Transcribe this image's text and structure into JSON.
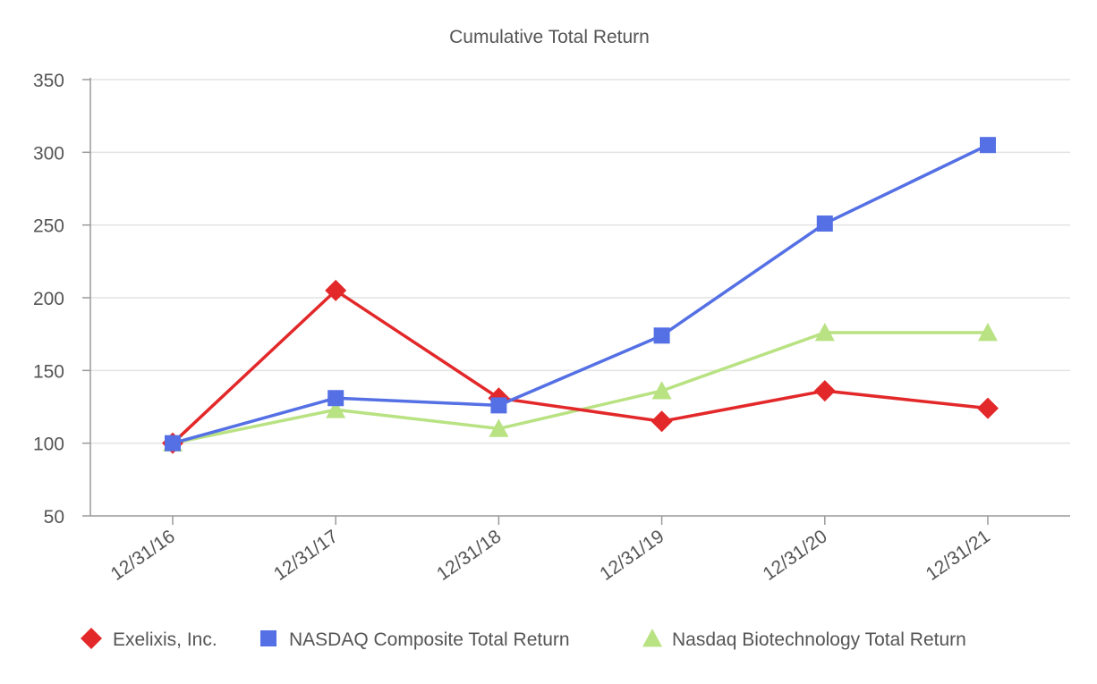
{
  "chart_data": {
    "type": "line",
    "title": "Cumulative Total Return",
    "xlabel": "",
    "ylabel": "",
    "categories": [
      "12/31/16",
      "12/31/17",
      "12/31/18",
      "12/31/19",
      "12/31/20",
      "12/31/21"
    ],
    "ylim": [
      50,
      350
    ],
    "yticks": [
      50,
      100,
      150,
      200,
      250,
      300,
      350
    ],
    "grid": true,
    "legend_position": "bottom",
    "series": [
      {
        "name": "Exelixis, Inc.",
        "marker": "diamond",
        "color": "#e3282a",
        "values": [
          100,
          205,
          131,
          115,
          136,
          124
        ]
      },
      {
        "name": "NASDAQ Composite Total Return",
        "marker": "square",
        "color": "#5470e4",
        "values": [
          100,
          131,
          126,
          174,
          251,
          305
        ]
      },
      {
        "name": "Nasdaq Biotechnology Total Return",
        "marker": "triangle",
        "color": "#b9e283",
        "values": [
          100,
          123,
          110,
          136,
          176,
          176
        ]
      }
    ]
  }
}
